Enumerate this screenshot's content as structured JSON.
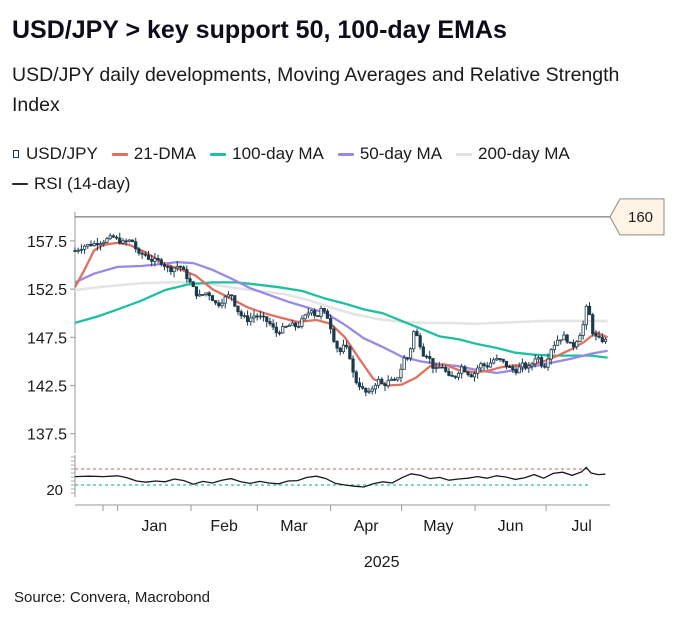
{
  "title": "USD/JPY > key support 50, 100-day EMAs",
  "subtitle": "USD/JPY daily developments, Moving Averages and Relative Strength Index",
  "source": "Source: Convera, Macrobond",
  "legend": [
    {
      "name": "USD/JPY",
      "color": "#1b3a4b",
      "kind": "candle"
    },
    {
      "name": "21-DMA",
      "color": "#e07060",
      "kind": "line"
    },
    {
      "name": "100-day MA",
      "color": "#1fbfa0",
      "kind": "line"
    },
    {
      "name": "50-day MA",
      "color": "#9988e8",
      "kind": "line"
    },
    {
      "name": "200-day MA",
      "color": "#e2e2e2",
      "kind": "line"
    },
    {
      "name": "RSI (14-day)",
      "color": "#2a2a2a",
      "kind": "line"
    }
  ],
  "chart_data": {
    "type": "line",
    "title": "USD/JPY > key support 50, 100-day EMAs",
    "year_label": "2025",
    "x_ticks": [
      "Jan",
      "Feb",
      "Mar",
      "Apr",
      "May",
      "Jun",
      "Jul"
    ],
    "y_ticks": [
      "157.5",
      "152.5",
      "147.5",
      "142.5",
      "137.5"
    ],
    "y_tick_values": [
      157.5,
      152.5,
      147.5,
      142.5,
      137.5
    ],
    "ylim": [
      135.5,
      160.5
    ],
    "reference_line": {
      "value": 160,
      "label": "160"
    },
    "x_range_days": [
      -18,
      208
    ],
    "month_starts": [
      0,
      31,
      59,
      90,
      120,
      151,
      181
    ],
    "usdjpy_close_anchors": [
      [
        -18,
        156.5
      ],
      [
        -14,
        157.0
      ],
      [
        -10,
        157.2
      ],
      [
        -6,
        157.5
      ],
      [
        -2,
        157.9
      ],
      [
        2,
        157.3
      ],
      [
        6,
        157.6
      ],
      [
        9,
        156.0
      ],
      [
        11,
        156.2
      ],
      [
        14,
        155.5
      ],
      [
        18,
        155.4
      ],
      [
        22,
        154.5
      ],
      [
        26,
        155.0
      ],
      [
        28,
        154.3
      ],
      [
        31,
        153.0
      ],
      [
        34,
        151.7
      ],
      [
        38,
        152.2
      ],
      [
        42,
        150.8
      ],
      [
        45,
        151.5
      ],
      [
        48,
        152.0
      ],
      [
        50,
        150.6
      ],
      [
        52,
        149.8
      ],
      [
        55,
        149.3
      ],
      [
        58,
        149.8
      ],
      [
        61,
        149.5
      ],
      [
        64,
        149.0
      ],
      [
        67,
        148.0
      ],
      [
        70,
        148.4
      ],
      [
        73,
        148.8
      ],
      [
        76,
        148.6
      ],
      [
        79,
        149.6
      ],
      [
        82,
        150.5
      ],
      [
        84,
        149.5
      ],
      [
        86,
        150.4
      ],
      [
        89,
        149.5
      ],
      [
        92,
        146.7
      ],
      [
        94,
        146.0
      ],
      [
        96,
        146.7
      ],
      [
        98,
        145.6
      ],
      [
        100,
        143.1
      ],
      [
        102,
        142.6
      ],
      [
        104,
        141.9
      ],
      [
        106,
        141.6
      ],
      [
        108,
        142.4
      ],
      [
        110,
        143.1
      ],
      [
        112,
        142.5
      ],
      [
        115,
        143.0
      ],
      [
        117,
        142.9
      ],
      [
        119,
        143.7
      ],
      [
        121,
        145.3
      ],
      [
        123,
        145.4
      ],
      [
        125,
        148.1
      ],
      [
        127,
        147.4
      ],
      [
        129,
        145.8
      ],
      [
        131,
        145.7
      ],
      [
        134,
        144.0
      ],
      [
        137,
        144.6
      ],
      [
        140,
        143.3
      ],
      [
        143,
        143.5
      ],
      [
        145,
        144.5
      ],
      [
        148,
        143.8
      ],
      [
        150,
        143.5
      ],
      [
        153,
        144.7
      ],
      [
        156,
        144.5
      ],
      [
        159,
        145.2
      ],
      [
        162,
        145.1
      ],
      [
        165,
        144.4
      ],
      [
        168,
        144.0
      ],
      [
        171,
        144.6
      ],
      [
        174,
        144.3
      ],
      [
        177,
        145.7
      ],
      [
        180,
        144.3
      ],
      [
        183,
        146.3
      ],
      [
        186,
        147.3
      ],
      [
        189,
        147.6
      ],
      [
        192,
        146.4
      ],
      [
        195,
        147.7
      ],
      [
        197,
        149.0
      ],
      [
        198,
        150.5
      ],
      [
        199,
        150.2
      ],
      [
        201,
        147.7
      ],
      [
        203,
        147.3
      ],
      [
        205,
        147.2
      ],
      [
        207,
        147.1
      ]
    ],
    "ma21_anchors": [
      [
        -18,
        152.7
      ],
      [
        -14,
        154.5
      ],
      [
        -10,
        156.5
      ],
      [
        -6,
        157.1
      ],
      [
        0,
        157.3
      ],
      [
        5,
        157.1
      ],
      [
        12,
        156.3
      ],
      [
        20,
        155.1
      ],
      [
        27,
        154.5
      ],
      [
        33,
        153.9
      ],
      [
        40,
        152.5
      ],
      [
        48,
        151.5
      ],
      [
        55,
        150.6
      ],
      [
        62,
        150.0
      ],
      [
        68,
        149.6
      ],
      [
        76,
        149.1
      ],
      [
        84,
        149.3
      ],
      [
        90,
        148.9
      ],
      [
        96,
        147.5
      ],
      [
        102,
        145.3
      ],
      [
        108,
        143.2
      ],
      [
        114,
        142.5
      ],
      [
        120,
        142.6
      ],
      [
        126,
        143.3
      ],
      [
        132,
        144.5
      ],
      [
        138,
        144.7
      ],
      [
        144,
        144.1
      ],
      [
        150,
        143.9
      ],
      [
        156,
        144.0
      ],
      [
        162,
        144.4
      ],
      [
        168,
        144.6
      ],
      [
        174,
        144.6
      ],
      [
        180,
        145.0
      ],
      [
        186,
        145.6
      ],
      [
        192,
        146.3
      ],
      [
        197,
        147.0
      ],
      [
        202,
        148.0
      ],
      [
        207,
        147.5
      ]
    ],
    "ma50_anchors": [
      [
        -18,
        153.2
      ],
      [
        -10,
        154.1
      ],
      [
        0,
        154.8
      ],
      [
        10,
        154.9
      ],
      [
        18,
        155.1
      ],
      [
        25,
        155.3
      ],
      [
        32,
        155.2
      ],
      [
        40,
        154.5
      ],
      [
        48,
        153.6
      ],
      [
        56,
        152.6
      ],
      [
        64,
        151.9
      ],
      [
        72,
        151.2
      ],
      [
        80,
        150.6
      ],
      [
        88,
        150.0
      ],
      [
        96,
        148.8
      ],
      [
        104,
        147.4
      ],
      [
        112,
        146.5
      ],
      [
        120,
        145.5
      ],
      [
        128,
        145.0
      ],
      [
        136,
        144.7
      ],
      [
        144,
        144.5
      ],
      [
        152,
        144.1
      ],
      [
        160,
        143.8
      ],
      [
        168,
        144.1
      ],
      [
        176,
        144.5
      ],
      [
        184,
        144.9
      ],
      [
        192,
        145.3
      ],
      [
        200,
        145.8
      ],
      [
        207,
        146.1
      ]
    ],
    "ma100_anchors": [
      [
        -18,
        149.0
      ],
      [
        -8,
        149.7
      ],
      [
        0,
        150.4
      ],
      [
        10,
        151.3
      ],
      [
        20,
        152.4
      ],
      [
        30,
        153.0
      ],
      [
        40,
        153.2
      ],
      [
        50,
        153.2
      ],
      [
        58,
        153.0
      ],
      [
        68,
        152.7
      ],
      [
        78,
        152.3
      ],
      [
        88,
        151.5
      ],
      [
        96,
        151.0
      ],
      [
        104,
        150.4
      ],
      [
        112,
        150.0
      ],
      [
        120,
        149.2
      ],
      [
        128,
        148.4
      ],
      [
        136,
        147.6
      ],
      [
        144,
        147.3
      ],
      [
        152,
        146.8
      ],
      [
        160,
        146.4
      ],
      [
        168,
        145.9
      ],
      [
        176,
        145.7
      ],
      [
        184,
        145.6
      ],
      [
        192,
        145.6
      ],
      [
        200,
        145.6
      ],
      [
        207,
        145.4
      ]
    ],
    "ma200_anchors": [
      [
        -18,
        152.4
      ],
      [
        -8,
        152.7
      ],
      [
        0,
        152.9
      ],
      [
        10,
        153.1
      ],
      [
        20,
        153.2
      ],
      [
        30,
        153.2
      ],
      [
        40,
        153.0
      ],
      [
        50,
        152.6
      ],
      [
        60,
        152.3
      ],
      [
        70,
        152.0
      ],
      [
        80,
        151.4
      ],
      [
        90,
        150.6
      ],
      [
        100,
        149.9
      ],
      [
        110,
        149.4
      ],
      [
        120,
        149.1
      ],
      [
        130,
        149.0
      ],
      [
        140,
        149.0
      ],
      [
        150,
        148.9
      ],
      [
        160,
        149.0
      ],
      [
        170,
        149.1
      ],
      [
        180,
        149.2
      ],
      [
        190,
        149.2
      ],
      [
        200,
        149.2
      ],
      [
        207,
        149.2
      ]
    ],
    "rsi": {
      "label": "20",
      "label_value": 20,
      "upper_ref": 70,
      "lower_ref": 30,
      "ylim": [
        0,
        100
      ]
    },
    "rsi_anchors": [
      [
        -18,
        51
      ],
      [
        -12,
        52
      ],
      [
        -6,
        51
      ],
      [
        0,
        53
      ],
      [
        4,
        48
      ],
      [
        8,
        40
      ],
      [
        12,
        37
      ],
      [
        16,
        40
      ],
      [
        20,
        38
      ],
      [
        24,
        45
      ],
      [
        28,
        41
      ],
      [
        32,
        32
      ],
      [
        36,
        39
      ],
      [
        40,
        35
      ],
      [
        44,
        42
      ],
      [
        48,
        46
      ],
      [
        52,
        38
      ],
      [
        56,
        34
      ],
      [
        60,
        39
      ],
      [
        64,
        35
      ],
      [
        68,
        33
      ],
      [
        72,
        40
      ],
      [
        76,
        41
      ],
      [
        80,
        49
      ],
      [
        84,
        52
      ],
      [
        88,
        46
      ],
      [
        92,
        34
      ],
      [
        96,
        30
      ],
      [
        100,
        27
      ],
      [
        104,
        25
      ],
      [
        108,
        33
      ],
      [
        112,
        38
      ],
      [
        116,
        35
      ],
      [
        120,
        48
      ],
      [
        124,
        58
      ],
      [
        128,
        54
      ],
      [
        132,
        46
      ],
      [
        136,
        49
      ],
      [
        140,
        42
      ],
      [
        144,
        45
      ],
      [
        148,
        47
      ],
      [
        152,
        51
      ],
      [
        156,
        47
      ],
      [
        160,
        53
      ],
      [
        164,
        50
      ],
      [
        168,
        44
      ],
      [
        172,
        48
      ],
      [
        176,
        56
      ],
      [
        180,
        47
      ],
      [
        184,
        59
      ],
      [
        188,
        62
      ],
      [
        192,
        54
      ],
      [
        196,
        63
      ],
      [
        198,
        74
      ],
      [
        200,
        60
      ],
      [
        203,
        56
      ],
      [
        206,
        57
      ]
    ]
  }
}
